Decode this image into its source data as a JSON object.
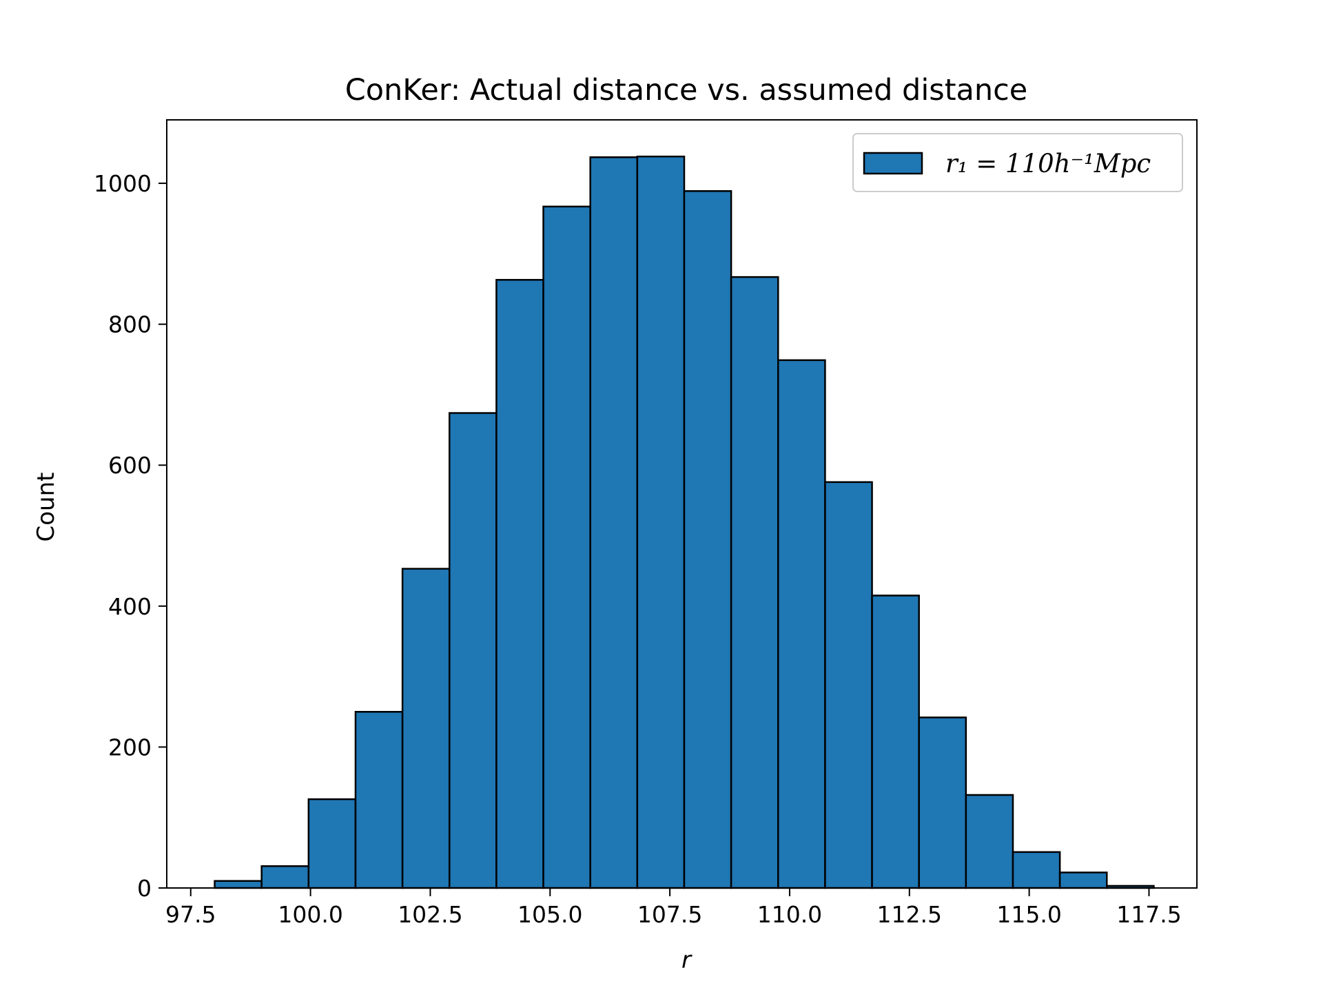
{
  "chart_data": {
    "type": "bar",
    "title": "ConKer: Actual distance vs. assumed distance",
    "xlabel": "r",
    "ylabel": "Count",
    "xlim": [
      97.0,
      118.5
    ],
    "ylim": [
      0,
      1090
    ],
    "xticks": [
      97.5,
      100.0,
      102.5,
      105.0,
      107.5,
      110.0,
      112.5,
      115.0,
      117.5
    ],
    "xtick_labels": [
      "97.5",
      "100.0",
      "102.5",
      "105.0",
      "107.5",
      "110.0",
      "112.5",
      "115.0",
      "117.5"
    ],
    "yticks": [
      0,
      200,
      400,
      600,
      800,
      1000
    ],
    "ytick_labels": [
      "0",
      "200",
      "400",
      "600",
      "800",
      "1000"
    ],
    "bin_edges": [
      98.0,
      98.98,
      99.96,
      100.94,
      101.92,
      102.9,
      103.88,
      104.86,
      105.84,
      106.82,
      107.8,
      108.78,
      109.76,
      110.74,
      111.72,
      112.7,
      113.68,
      114.66,
      115.64,
      116.62,
      117.6
    ],
    "values": [
      10,
      31,
      126,
      250,
      453,
      674,
      863,
      967,
      1037,
      1038,
      989,
      867,
      749,
      576,
      415,
      242,
      132,
      51,
      22,
      3
    ],
    "grid": false,
    "legend_position": "top-right",
    "series": [
      {
        "name": "r₁ = 110h⁻¹Mpc",
        "color": "#1f77b4",
        "edge_color": "#000000"
      }
    ]
  }
}
